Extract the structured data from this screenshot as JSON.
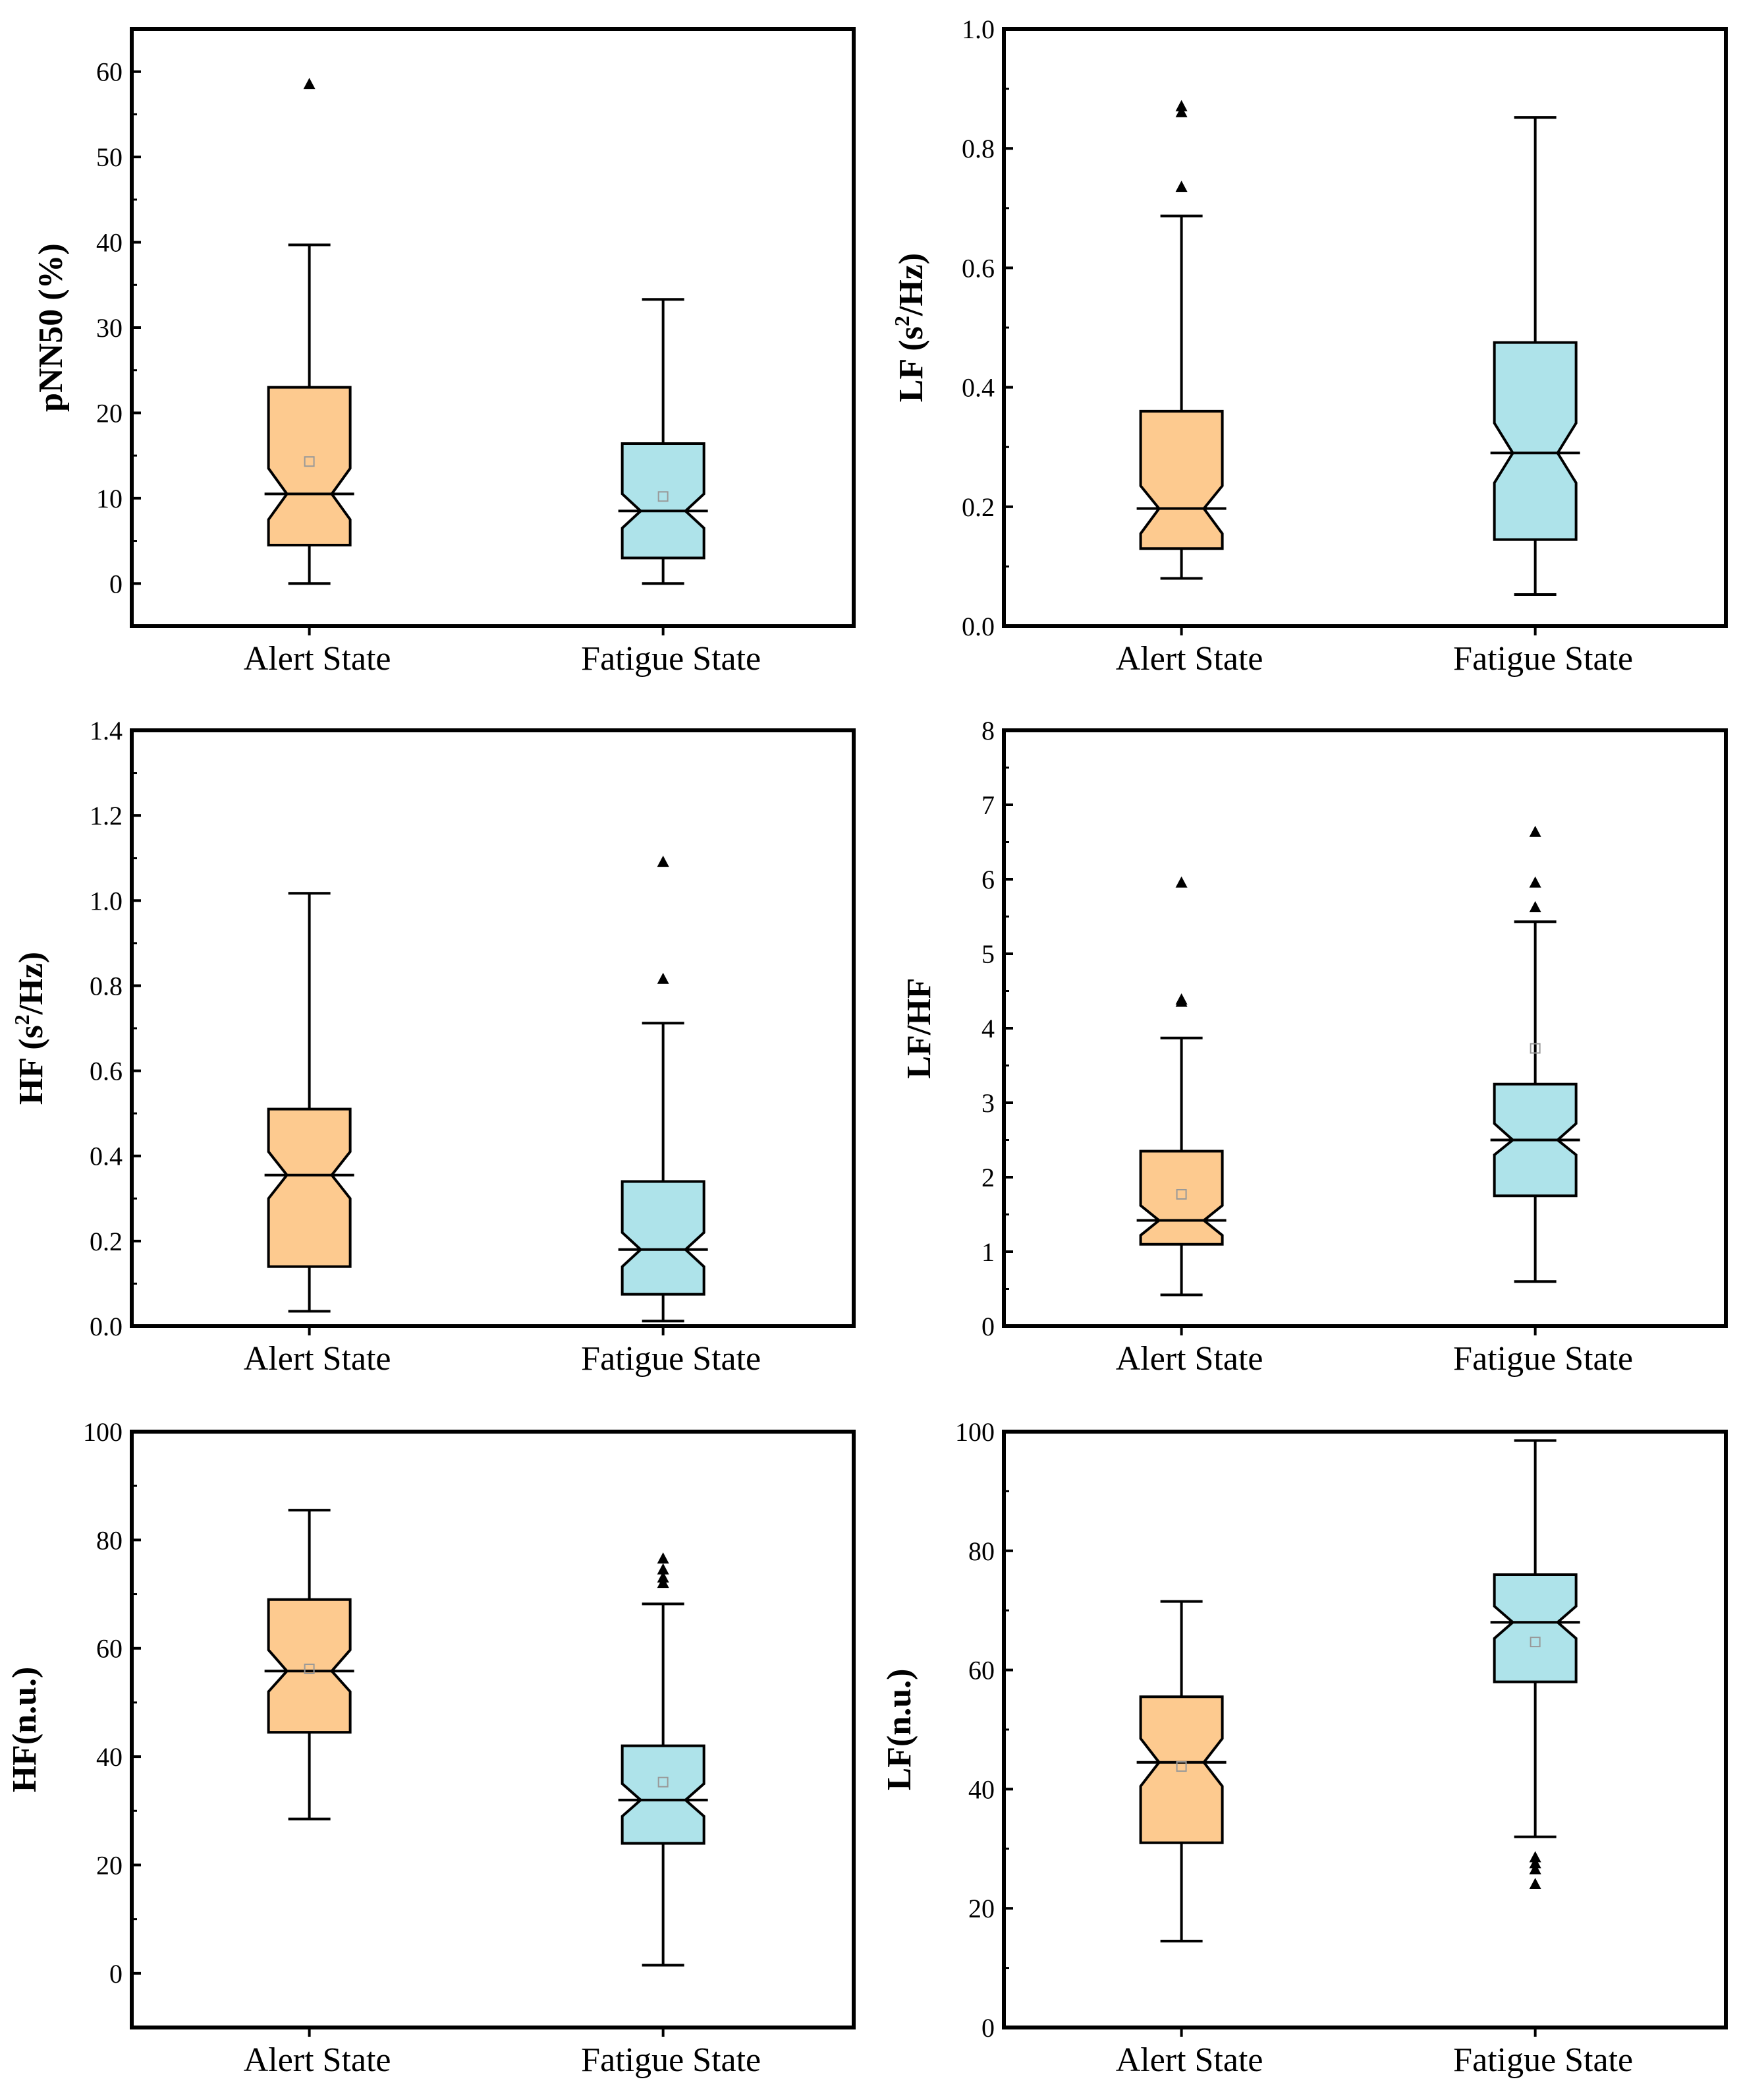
{
  "colors": {
    "alert": "#fdca8f",
    "fatigue": "#aee3ea",
    "stroke": "#000000",
    "mean": "#999999"
  },
  "chart_data": [
    {
      "type": "boxplot",
      "ylabel": "pNN50 (%)",
      "ylim": [
        -5,
        65
      ],
      "yticks": [
        0,
        10,
        20,
        30,
        40,
        50,
        60
      ],
      "categories": [
        "Alert State",
        "Fatigue State"
      ],
      "boxes": [
        {
          "min": 0,
          "q1": 4.5,
          "median": 10.5,
          "q3": 23,
          "max": 39.7,
          "mean": 14.3,
          "notch_low": 7.5,
          "notch_high": 13.5,
          "outliers": [
            58.5
          ]
        },
        {
          "min": 0,
          "q1": 3,
          "median": 8.5,
          "q3": 16.4,
          "max": 33.3,
          "mean": 10.2,
          "notch_low": 6.5,
          "notch_high": 10.5,
          "outliers": []
        }
      ]
    },
    {
      "type": "boxplot",
      "ylabel": "LF (s²/Hz)",
      "ylabel_main": "LF (s",
      "ylabel_sup": "2",
      "ylabel_end": "/Hz)",
      "ylim": [
        0,
        1.0
      ],
      "yticks": [
        0.0,
        0.2,
        0.4,
        0.6,
        0.8,
        1.0
      ],
      "categories": [
        "Alert State",
        "Fatigue State"
      ],
      "boxes": [
        {
          "min": 0.08,
          "q1": 0.13,
          "median": 0.197,
          "q3": 0.36,
          "max": 0.687,
          "mean": null,
          "notch_low": 0.155,
          "notch_high": 0.235,
          "outliers": [
            0.735,
            0.86,
            0.87
          ]
        },
        {
          "min": 0.053,
          "q1": 0.145,
          "median": 0.29,
          "q3": 0.475,
          "max": 0.852,
          "mean": null,
          "notch_low": 0.24,
          "notch_high": 0.34,
          "outliers": []
        }
      ]
    },
    {
      "type": "boxplot",
      "ylabel": "HF (s²/Hz)",
      "ylabel_main": "HF (s",
      "ylabel_sup": "2",
      "ylabel_end": "/Hz)",
      "ylim": [
        0,
        1.4
      ],
      "yticks": [
        0.0,
        0.2,
        0.4,
        0.6,
        0.8,
        1.0,
        1.2,
        1.4
      ],
      "categories": [
        "Alert State",
        "Fatigue State"
      ],
      "boxes": [
        {
          "min": 0.035,
          "q1": 0.14,
          "median": 0.355,
          "q3": 0.51,
          "max": 1.017,
          "mean": null,
          "notch_low": 0.3,
          "notch_high": 0.41,
          "outliers": []
        },
        {
          "min": 0.012,
          "q1": 0.075,
          "median": 0.18,
          "q3": 0.34,
          "max": 0.712,
          "mean": null,
          "notch_low": 0.14,
          "notch_high": 0.22,
          "outliers": [
            0.815,
            1.09
          ]
        }
      ]
    },
    {
      "type": "boxplot",
      "ylabel": "LF/HF",
      "ylim": [
        0,
        8
      ],
      "yticks": [
        0,
        1,
        2,
        3,
        4,
        5,
        6,
        7,
        8
      ],
      "categories": [
        "Alert State",
        "Fatigue State"
      ],
      "boxes": [
        {
          "min": 0.42,
          "q1": 1.1,
          "median": 1.42,
          "q3": 2.35,
          "max": 3.87,
          "mean": 1.77,
          "notch_low": 1.22,
          "notch_high": 1.62,
          "outliers": [
            4.35,
            4.38,
            5.95
          ]
        },
        {
          "min": 0.6,
          "q1": 1.75,
          "median": 2.5,
          "q3": 3.25,
          "max": 5.43,
          "mean": 3.73,
          "notch_low": 2.3,
          "notch_high": 2.72,
          "outliers": [
            5.62,
            5.95,
            6.63
          ]
        }
      ]
    },
    {
      "type": "boxplot",
      "ylabel": "HF(n.u.)",
      "ylim": [
        -10,
        100
      ],
      "yticks": [
        0,
        20,
        40,
        60,
        80,
        100
      ],
      "categories": [
        "Alert State",
        "Fatigue State"
      ],
      "boxes": [
        {
          "min": 28.5,
          "q1": 44.5,
          "median": 55.8,
          "q3": 69,
          "max": 85.5,
          "mean": 56.2,
          "notch_low": 52,
          "notch_high": 59.7,
          "outliers": []
        },
        {
          "min": 1.5,
          "q1": 24,
          "median": 32,
          "q3": 42,
          "max": 68.2,
          "mean": 35.3,
          "notch_low": 29,
          "notch_high": 35,
          "outliers": [
            72,
            73,
            74.5,
            76.5
          ]
        }
      ]
    },
    {
      "type": "boxplot",
      "ylabel": "LF(n.u.)",
      "ylim": [
        0,
        100
      ],
      "yticks": [
        0,
        20,
        40,
        60,
        80,
        100
      ],
      "categories": [
        "Alert State",
        "Fatigue State"
      ],
      "boxes": [
        {
          "min": 14.5,
          "q1": 31,
          "median": 44.5,
          "q3": 55.5,
          "max": 71.5,
          "mean": 43.8,
          "notch_low": 40.5,
          "notch_high": 48.5,
          "outliers": []
        },
        {
          "min": 32,
          "q1": 58,
          "median": 68,
          "q3": 76,
          "max": 98.5,
          "mean": 64.7,
          "notch_low": 65.3,
          "notch_high": 70.7,
          "outliers": [
            24,
            26.5,
            27.5,
            28.5
          ]
        }
      ]
    }
  ]
}
